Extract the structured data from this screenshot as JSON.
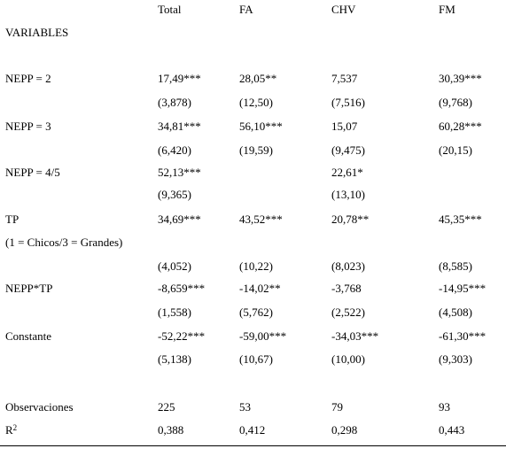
{
  "table": {
    "columns": [
      "Total",
      "FA",
      "CHV",
      "FM"
    ],
    "variables_label": "VARIABLES",
    "rows": [
      {
        "label": "NEPP = 2",
        "coef": [
          "17,49***",
          "28,05**",
          "7,537",
          "30,39***"
        ],
        "se": [
          "(3,878)",
          "(12,50)",
          "(7,516)",
          "(9,768)"
        ]
      },
      {
        "label": "NEPP = 3",
        "coef": [
          "34,81***",
          "56,10***",
          "15,07",
          "60,28***"
        ],
        "se": [
          "(6,420)",
          "(19,59)",
          "(9,475)",
          "(20,15)"
        ]
      },
      {
        "label": "NEPP = 4/5",
        "coef": [
          "52,13***",
          "",
          "22,61*",
          ""
        ],
        "se": [
          "(9,365)",
          "",
          "(13,10)",
          ""
        ]
      },
      {
        "label": "TP",
        "sublabel": "(1 = Chicos/3 = Grandes)",
        "coef": [
          "34,69***",
          "43,52***",
          "20,78**",
          "45,35***"
        ],
        "se": [
          "(4,052)",
          "(10,22)",
          "(8,023)",
          "(8,585)"
        ]
      },
      {
        "label": "NEPP*TP",
        "coef": [
          "-8,659***",
          "-14,02**",
          "-3,768",
          "-14,95***"
        ],
        "se": [
          "(1,558)",
          "(5,762)",
          "(2,522)",
          "(4,508)"
        ]
      },
      {
        "label": "Constante",
        "coef": [
          "-52,22***",
          "-59,00***",
          "-34,03***",
          "-61,30***"
        ],
        "se": [
          "(5,138)",
          "(10,67)",
          "(10,00)",
          "(9,303)"
        ]
      }
    ],
    "observations": {
      "label": "Observaciones",
      "values": [
        "225",
        "53",
        "79",
        "93"
      ]
    },
    "r2": {
      "label": "R",
      "sup": "2",
      "values": [
        "0,388",
        "0,412",
        "0,298",
        "0,443"
      ]
    }
  }
}
